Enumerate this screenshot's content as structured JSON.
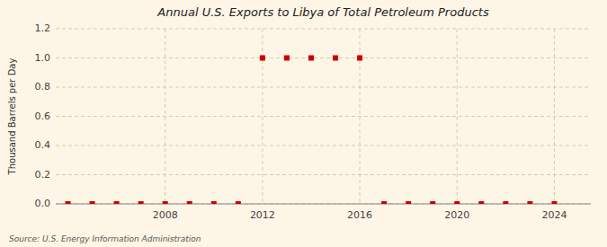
{
  "chart_data": {
    "type": "scatter",
    "title": "Annual U.S. Exports to Libya of Total Petroleum Products",
    "ylabel": "Thousand Barrels per Day",
    "annotations": [
      "Source: U.S. Energy Information Administration"
    ],
    "x": [
      2004,
      2005,
      2006,
      2007,
      2008,
      2009,
      2010,
      2011,
      2012,
      2013,
      2014,
      2015,
      2016,
      2017,
      2018,
      2019,
      2020,
      2021,
      2022,
      2023,
      2024
    ],
    "values": [
      0.0,
      0.0,
      0.0,
      0.0,
      0.0,
      0.0,
      0.0,
      0.0,
      1.0,
      1.0,
      1.0,
      1.0,
      1.0,
      0.0,
      0.0,
      0.0,
      0.0,
      0.0,
      0.0,
      0.0,
      0.0
    ],
    "color": "#cc0000",
    "marker": "square",
    "xlim": [
      2003.5,
      2025.5
    ],
    "ylim": [
      0.0,
      1.2
    ],
    "xticks": [
      2008,
      2012,
      2016,
      2020,
      2024
    ],
    "yticks": [
      {
        "value": 0.0,
        "label": "0.0"
      },
      0.2,
      0.4,
      0.6,
      0.8,
      {
        "value": 1.0,
        "label": "1.0"
      },
      1.2
    ],
    "grid": true
  }
}
